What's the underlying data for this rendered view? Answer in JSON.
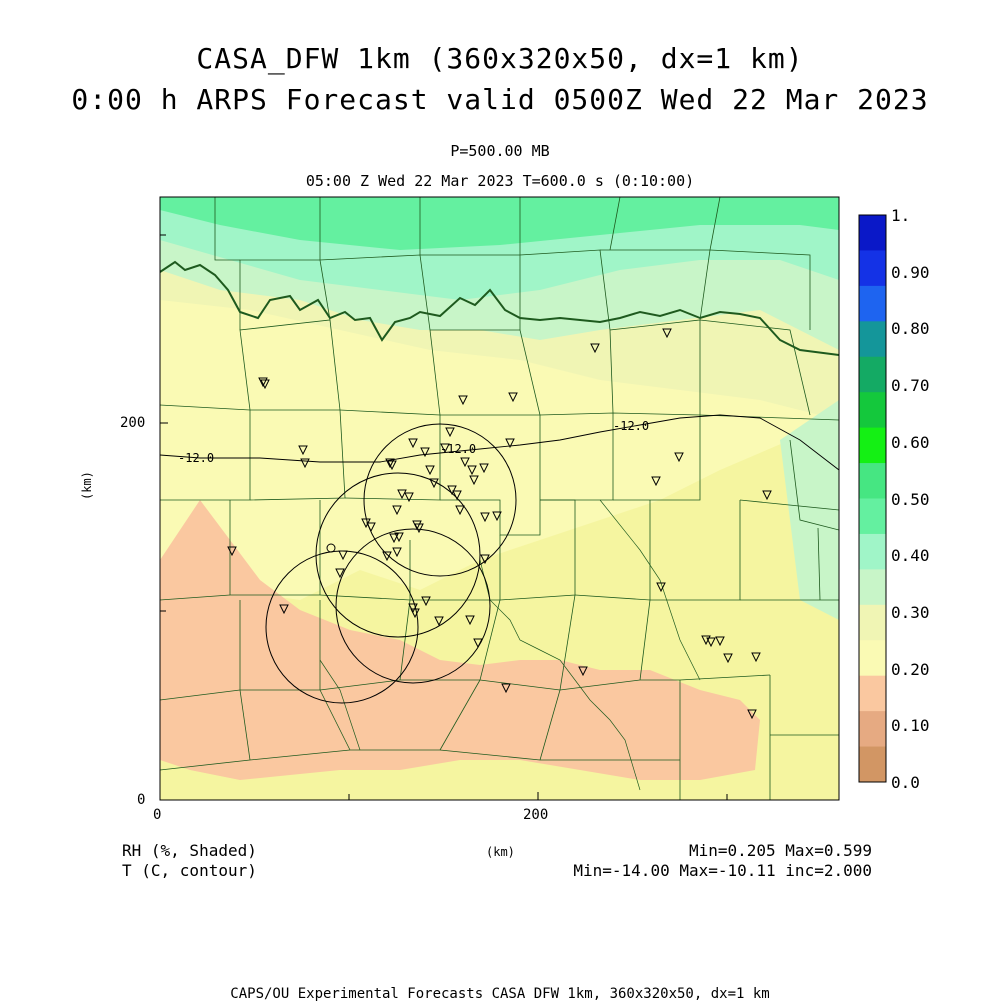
{
  "title_line1": "CASA_DFW 1km (360x320x50, dx=1 km)",
  "title_line2": "0:00 h ARPS Forecast valid 0500Z Wed 22 Mar 2023",
  "pressure_level": "P=500.00 MB",
  "valid_time": "05:00 Z Wed 22 Mar 2023   T=600.0 s (0:10:00)",
  "x_axis": {
    "ticks": [
      "0",
      "200"
    ],
    "unit": "(km)"
  },
  "y_axis": {
    "ticks": [
      "0",
      "200"
    ],
    "unit": "(km)"
  },
  "colorbar": {
    "labels": [
      "1.",
      "0.90",
      "0.80",
      "0.70",
      "0.60",
      "0.50",
      "0.40",
      "0.30",
      "0.20",
      "0.10",
      "0.0"
    ],
    "colors": [
      "#0a18c8",
      "#1432e6",
      "#1e64f0",
      "#14969a",
      "#14aa64",
      "#14c83c",
      "#14f014",
      "#46e682",
      "#64f0a0",
      "#a0f5c8",
      "#c8f5c8",
      "#f0f5b4",
      "#fafab4",
      "#fac8a0",
      "#e6aa82",
      "#d29664"
    ]
  },
  "contours": [
    {
      "label": "-12.0"
    },
    {
      "label": "-12.0"
    },
    {
      "label": "-12.0"
    }
  ],
  "footer": {
    "field1": "RH (%, Shaded)",
    "field2": "T (C, contour)",
    "stats1": "Min=0.205 Max=0.599",
    "stats2": "Min=-14.00 Max=-10.11 inc=2.000",
    "credit": "CAPS/OU Experimental Forecasts  CASA DFW 1km, 360x320x50, dx=1 km"
  }
}
